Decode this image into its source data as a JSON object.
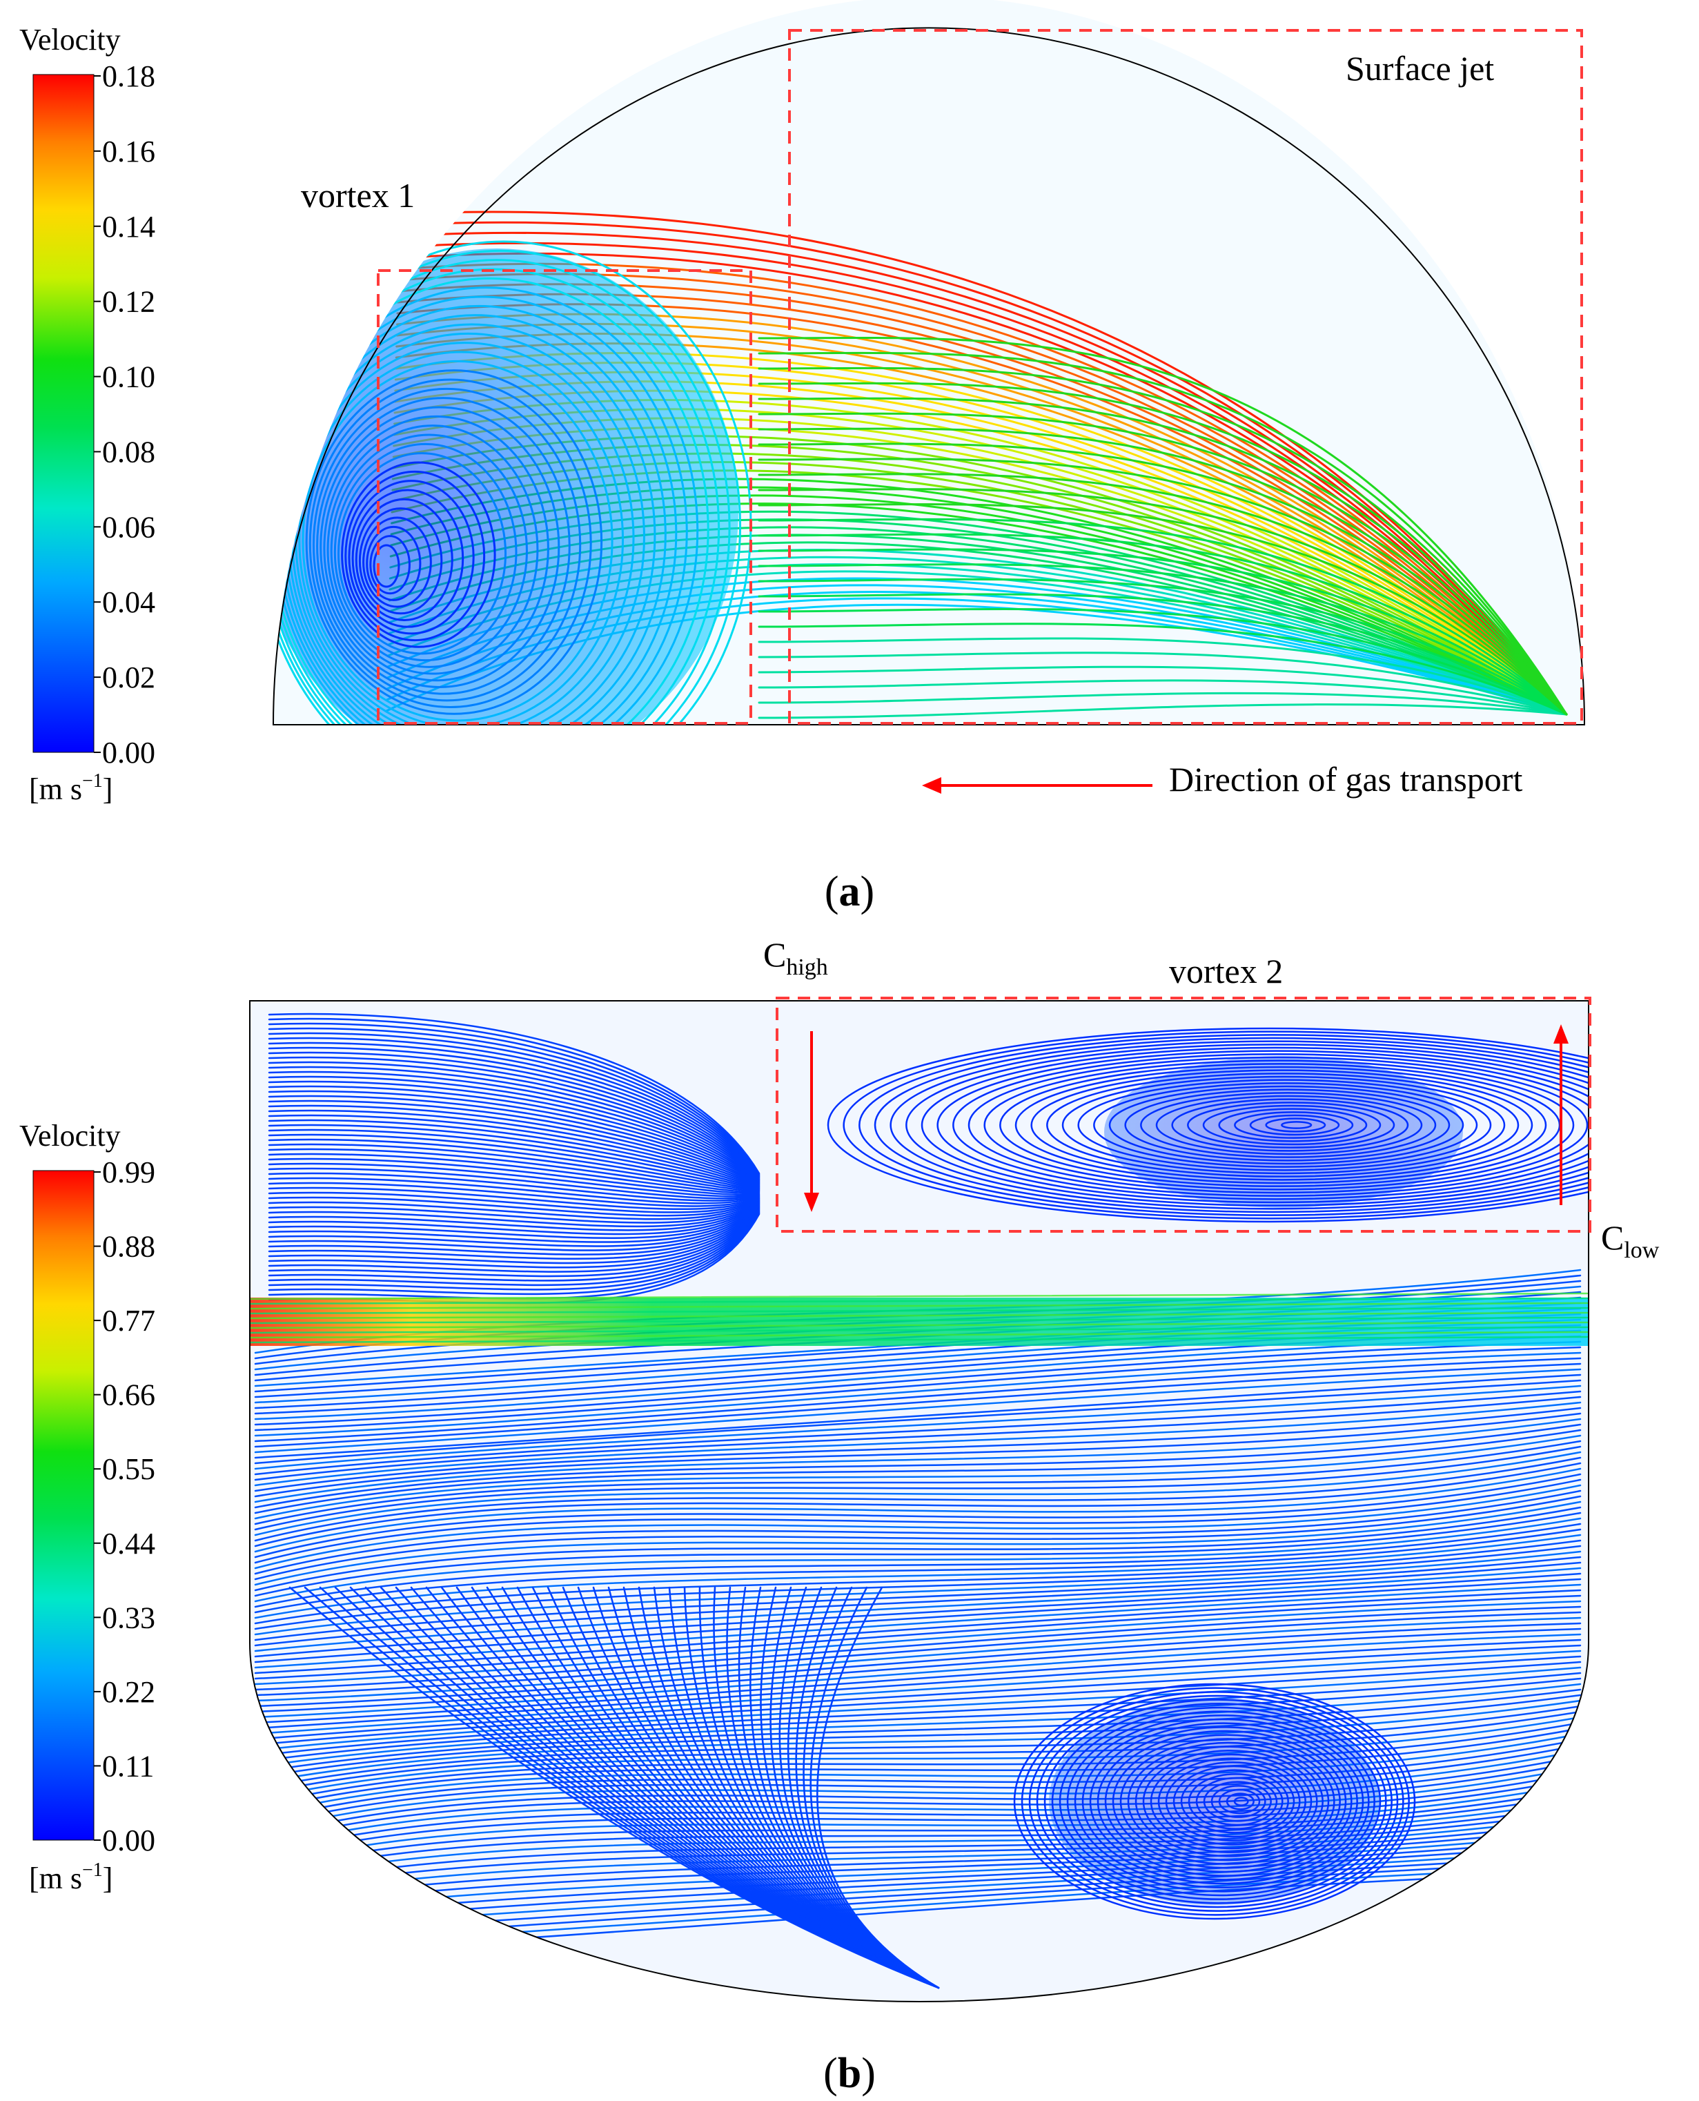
{
  "panel_a": {
    "colorbar": {
      "title": "Velocity",
      "ticks": [
        "0.18",
        "0.16",
        "0.14",
        "0.12",
        "0.10",
        "0.08",
        "0.06",
        "0.04",
        "0.02",
        "0.00"
      ],
      "unit_main": "[m s",
      "unit_sup": "−1",
      "unit_close": "]"
    },
    "annotations": {
      "vortex": "vortex 1",
      "surface_jet": "Surface jet",
      "direction": "Direction of gas transport"
    },
    "label_open": "(",
    "label_letter": "a",
    "label_close": ")"
  },
  "panel_b": {
    "colorbar": {
      "title": "Velocity",
      "ticks": [
        "0.99",
        "0.88",
        "0.77",
        "0.66",
        "0.55",
        "0.44",
        "0.33",
        "0.22",
        "0.11",
        "0.00"
      ],
      "unit_main": "[m s",
      "unit_sup": "−1",
      "unit_close": "]"
    },
    "annotations": {
      "vortex": "vortex 2",
      "c_high_main": "C",
      "c_high_sub": "high",
      "c_low_main": "C",
      "c_low_sub": "low"
    },
    "label_open": "(",
    "label_letter": "b",
    "label_close": ")"
  },
  "colors": {
    "outline": "#000000",
    "dash_box": "#ff3b3b",
    "arrow": "#ff0000"
  }
}
